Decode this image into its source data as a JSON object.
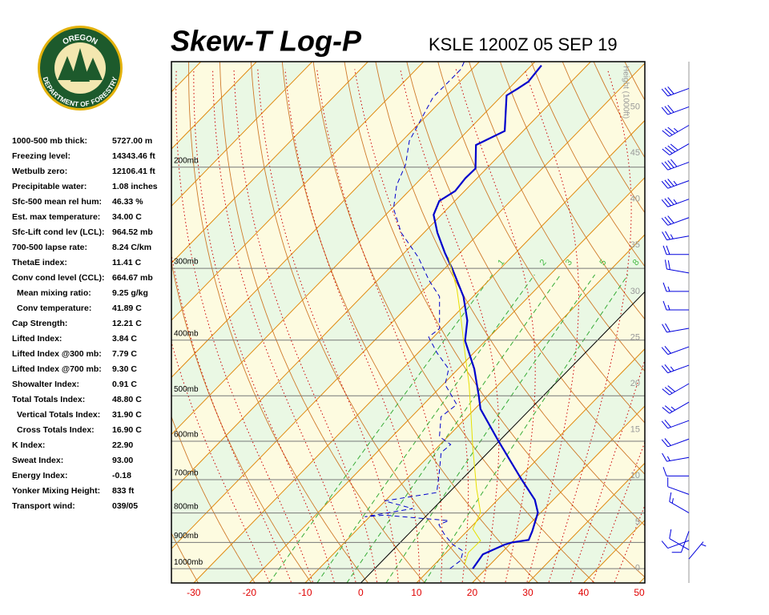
{
  "logo": {
    "top": "OREGON",
    "bottom": "DEPARTMENT OF FORESTRY"
  },
  "stats": [
    {
      "label": "1000-500 mb thick:",
      "value": "5727.00 m"
    },
    {
      "label": "Freezing level:",
      "value": "14343.46 ft"
    },
    {
      "label": "Wetbulb zero:",
      "value": "12106.41 ft"
    },
    {
      "label": "Precipitable water:",
      "value": "1.08 inches"
    },
    {
      "label": "Sfc-500 mean rel hum:",
      "value": "46.33 %"
    },
    {
      "label": "Est. max temperature:",
      "value": "34.00 C"
    },
    {
      "label": "Sfc-Lift cond lev (LCL):",
      "value": "964.52 mb"
    },
    {
      "label": "700-500 lapse rate:",
      "value": "8.24 C/km"
    },
    {
      "label": "ThetaE index:",
      "value": "11.41 C"
    },
    {
      "label": "Conv cond level (CCL):",
      "value": "664.67 mb"
    },
    {
      "label": "Mean mixing ratio:",
      "value": "9.25 g/kg",
      "indent": true
    },
    {
      "label": "Conv temperature:",
      "value": "41.89 C",
      "indent": true
    },
    {
      "label": "Cap Strength:",
      "value": "12.21 C"
    },
    {
      "label": "Lifted Index:",
      "value": "3.84 C"
    },
    {
      "label": "Lifted Index @300 mb:",
      "value": "7.79 C"
    },
    {
      "label": "Lifted Index @700 mb:",
      "value": "9.30 C"
    },
    {
      "label": "Showalter Index:",
      "value": "0.91 C"
    },
    {
      "label": "Total Totals Index:",
      "value": "48.80 C"
    },
    {
      "label": "Vertical Totals Index:",
      "value": "31.90 C",
      "indent": true
    },
    {
      "label": "Cross Totals Index:",
      "value": "16.90 C",
      "indent": true
    },
    {
      "label": "K Index:",
      "value": "22.90"
    },
    {
      "label": "Sweat Index:",
      "value": "93.00"
    },
    {
      "label": "Energy Index:",
      "value": "-0.18"
    },
    {
      "label": "Yonker Mixing Height:",
      "value": "833 ft"
    },
    {
      "label": "Transport wind:",
      "value": "039/05"
    }
  ],
  "chart_data": {
    "type": "skewt",
    "title": "Skew-T Log-P",
    "subtitle": "KSLE 1200Z 05 SEP 19",
    "xlim": [
      -34,
      51
    ],
    "xticks": [
      -30,
      -20,
      -10,
      0,
      10,
      20,
      30,
      40,
      50
    ],
    "ylim": [
      1059,
      131
    ],
    "yscale": "log",
    "yticks": [
      {
        "value": 200,
        "label": "200mb"
      },
      {
        "value": 300,
        "label": "300mb"
      },
      {
        "value": 400,
        "label": "400mb"
      },
      {
        "value": 500,
        "label": "500mb"
      },
      {
        "value": 600,
        "label": "600mb"
      },
      {
        "value": 700,
        "label": "700mb"
      },
      {
        "value": 800,
        "label": "800mb"
      },
      {
        "value": 900,
        "label": "900mb"
      },
      {
        "value": 1000,
        "label": "1000mb"
      }
    ],
    "y2label": "Height (1000ft)",
    "y2lim": [
      -1.6,
      54.9
    ],
    "y2ticks": [
      0,
      5,
      10,
      15,
      20,
      25,
      30,
      35,
      40,
      45,
      50
    ],
    "mixing_ratios": [
      1,
      2,
      3,
      5,
      8
    ],
    "series": [
      {
        "color": "#0000cc",
        "style": "solid",
        "p": [
          1000,
          944,
          908,
          900,
          891,
          860,
          799,
          759,
          696,
          599,
          527,
          500,
          449,
          401,
          370,
          336,
          301,
          282,
          260,
          242,
          229,
          220,
          209,
          201,
          183,
          173,
          150,
          146,
          142,
          133
        ],
        "t": [
          17.6,
          16.9,
          19.1,
          20.1,
          22.6,
          21.7,
          19.5,
          16.7,
          10.4,
          -0.2,
          -9.0,
          -11.6,
          -17.1,
          -23.7,
          -26.8,
          -31.7,
          -38.5,
          -42.7,
          -47.6,
          -51.4,
          -52.8,
          -51.7,
          -52.1,
          -52.0,
          -56.0,
          -53.3,
          -59.2,
          -58.4,
          -57.7,
          -58.2
        ]
      },
      {
        "color": "#0000cc",
        "style": "dashed",
        "p": [
          1000,
          968,
          932,
          908,
          874,
          838,
          825,
          807,
          812,
          786,
          762,
          737,
          681,
          628,
          608,
          589,
          544,
          518,
          478,
          449,
          421,
          395,
          382,
          336,
          315,
          287,
          260,
          236,
          215,
          198,
          180,
          151,
          142,
          135,
          131
        ],
        "t": [
          13.5,
          14.0,
          12.8,
          9.8,
          6.7,
          3.8,
          4.9,
          -7.6,
          -10.9,
          -3.7,
          -10.1,
          -2.2,
          -5.2,
          -8.4,
          -8.1,
          -11.5,
          -14.7,
          -14.0,
          -19.6,
          -21.7,
          -26.6,
          -30.9,
          -30.4,
          -36.0,
          -40.7,
          -46.7,
          -54.1,
          -59.7,
          -63.2,
          -65.2,
          -68.7,
          -72.1,
          -72.0,
          -72.0,
          -72.7
        ]
      },
      {
        "color": "#e8e000",
        "style": "solid",
        "p": [
          984,
          938,
          894,
          852,
          799,
          726,
          618,
          544,
          478,
          421,
          370,
          326,
          287
        ],
        "t": [
          15.4,
          14.0,
          14.1,
          10.6,
          9.2,
          4.3,
          -3.4,
          -9.3,
          -15.3,
          -21.6,
          -27.9,
          -34.2,
          -41.3
        ]
      }
    ],
    "winds": [
      {
        "height": 1,
        "direction": 40,
        "speed": 5
      },
      {
        "height": 2,
        "direction": 300,
        "speed": 10
      },
      {
        "height": 3,
        "direction": 250,
        "speed": 10
      },
      {
        "height": 4,
        "direction": 200,
        "speed": 10
      },
      {
        "height": 6,
        "direction": 300,
        "speed": 15
      },
      {
        "height": 8,
        "direction": 290,
        "speed": 10
      },
      {
        "height": 10,
        "direction": 270,
        "speed": 10
      },
      {
        "height": 12,
        "direction": 260,
        "speed": 15
      },
      {
        "height": 14,
        "direction": 250,
        "speed": 20
      },
      {
        "height": 16,
        "direction": 250,
        "speed": 20
      },
      {
        "height": 18,
        "direction": 240,
        "speed": 25
      },
      {
        "height": 20,
        "direction": 240,
        "speed": 30
      },
      {
        "height": 22,
        "direction": 250,
        "speed": 25
      },
      {
        "height": 24,
        "direction": 250,
        "speed": 20
      },
      {
        "height": 26,
        "direction": 260,
        "speed": 20
      },
      {
        "height": 28,
        "direction": 270,
        "speed": 15
      },
      {
        "height": 30,
        "direction": 270,
        "speed": 15
      },
      {
        "height": 32,
        "direction": 280,
        "speed": 20
      },
      {
        "height": 34,
        "direction": 270,
        "speed": 20
      },
      {
        "height": 36,
        "direction": 260,
        "speed": 25
      },
      {
        "height": 38,
        "direction": 250,
        "speed": 30
      },
      {
        "height": 40,
        "direction": 250,
        "speed": 35
      },
      {
        "height": 42,
        "direction": 250,
        "speed": 35
      },
      {
        "height": 44,
        "direction": 250,
        "speed": 40
      },
      {
        "height": 46,
        "direction": 240,
        "speed": 40
      },
      {
        "height": 48,
        "direction": 240,
        "speed": 35
      },
      {
        "height": 50,
        "direction": 250,
        "speed": 30
      },
      {
        "height": 52,
        "direction": 250,
        "speed": 30
      }
    ]
  }
}
